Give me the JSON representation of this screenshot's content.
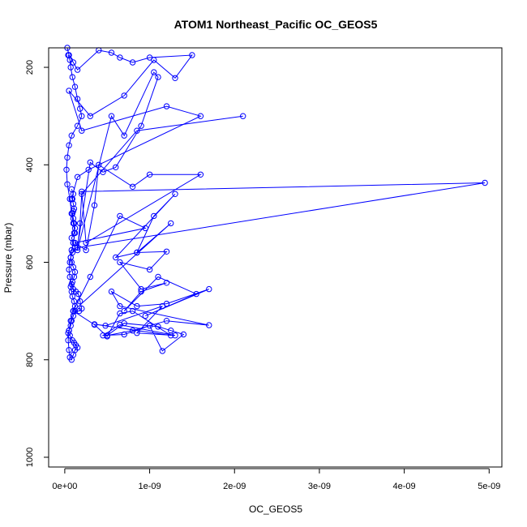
{
  "chart_data": {
    "type": "line",
    "title": "ATOM1 Northeast_Pacific OC_GEOS5",
    "xlabel": "OC_GEOS5",
    "ylabel": "Pressure (mbar)",
    "xlim": [
      -1.9e-10,
      5.15e-09
    ],
    "ylim": [
      1020,
      160
    ],
    "y_reversed": true,
    "x_ticks": [
      0,
      1e-09,
      2e-09,
      3e-09,
      4e-09,
      5e-09
    ],
    "x_tick_labels": [
      "0e+00",
      "1e-09",
      "2e-09",
      "3e-09",
      "4e-09",
      "5e-09"
    ],
    "y_ticks": [
      200,
      400,
      600,
      800,
      1000
    ],
    "y_tick_labels": [
      "200",
      "400",
      "600",
      "800",
      "1000"
    ],
    "grid": false,
    "marker": "open-circle",
    "series": [
      {
        "color": "#0000ff",
        "x": [
          4e-11,
          6e-11,
          7e-11,
          9e-11,
          1.2e-10,
          1.5e-10,
          1.8e-10,
          2e-10,
          1.5e-10,
          8e-11,
          5e-11,
          3e-11,
          2e-11,
          3e-11,
          6e-11,
          8e-11,
          1e-10,
          1.2e-10,
          1e-10,
          8e-11,
          7e-11,
          6e-11,
          5e-11,
          6e-11,
          8e-11,
          1e-10,
          1.3e-10,
          1.6e-10,
          1.8e-10,
          2e-10,
          1.7e-10,
          1.2e-10,
          1e-10,
          8e-11,
          7e-11,
          5e-11,
          4e-11,
          6e-11,
          9e-11,
          1.1e-10,
          1.3e-10,
          1.5e-10,
          1.2e-10,
          1e-10,
          8e-11,
          6e-11,
          5e-11,
          4e-11,
          5e-11,
          7e-11,
          1e-10,
          1.2e-10,
          1.1e-10,
          9e-11,
          8e-11,
          7e-11,
          9e-11,
          1.1e-10,
          1.2e-10,
          1e-10,
          8e-11,
          7e-11,
          9e-11,
          1.2e-10,
          1e-10,
          8e-11,
          1.1e-10,
          1.2e-10,
          1.1e-10,
          1e-10,
          9e-11,
          1e-10,
          1.1e-10,
          1e-10,
          9e-11,
          1e-10,
          8e-11
        ],
        "y": [
          175,
          185,
          200,
          220,
          240,
          265,
          285,
          300,
          320,
          340,
          360,
          385,
          410,
          440,
          470,
          500,
          520,
          540,
          560,
          575,
          590,
          600,
          615,
          630,
          645,
          655,
          660,
          665,
          680,
          695,
          700,
          700,
          710,
          720,
          730,
          740,
          745,
          750,
          760,
          765,
          770,
          775,
          780,
          790,
          800,
          795,
          780,
          760,
          740,
          720,
          700,
          690,
          680,
          670,
          660,
          650,
          640,
          630,
          620,
          610,
          600,
          590,
          580,
          570,
          560,
          550,
          540,
          530,
          520,
          510,
          500,
          495,
          490,
          480,
          470,
          460,
          450
        ]
      },
      {
        "color": "#0000ff",
        "x": [
          2.1e-09,
          8.5e-10,
          2e-10,
          1.8e-10,
          1.5e-10,
          5.5e-10,
          7e-10,
          1.05e-09,
          1.1e-09,
          9e-10,
          6e-10,
          4.5e-10,
          3e-10,
          1.5e-10,
          4.95e-09,
          2e-10,
          2.5e-10,
          1.6e-09,
          1e-09,
          8e-10,
          4e-10,
          3.5e-10,
          2.5e-10,
          1.2e-10,
          9.5e-10,
          6.5e-10,
          3e-10,
          1e-10,
          1.25e-09,
          8.5e-10,
          6e-10,
          1.3e-09,
          1.05e-09,
          8.5e-10,
          1.2e-09,
          1e-09,
          6.5e-10,
          9e-10,
          1.2e-09,
          9e-10,
          7e-10,
          1.1e-09,
          1.55e-09,
          9.5e-10,
          1.7e-09,
          1.2e-09,
          8.5e-10,
          5.5e-10,
          6.5e-10,
          1.7e-09,
          1.2e-09,
          8e-10,
          5e-10,
          7e-10,
          1.1e-09,
          1.25e-09,
          1.4e-09,
          1.15e-09,
          1e-09,
          7e-10,
          4.5e-10,
          6.5e-10,
          1.3e-09,
          8.5e-10,
          1.15e-09,
          4.8e-10,
          3.5e-10,
          1.25e-09,
          8e-10,
          6.5e-10,
          5e-10,
          3.5e-10,
          1e-10
        ],
        "y": [
          300,
          330,
          460,
          520,
          575,
          300,
          340,
          210,
          220,
          320,
          405,
          415,
          395,
          570,
          437,
          455,
          560,
          420,
          420,
          445,
          400,
          483,
          575,
          560,
          530,
          505,
          630,
          700,
          520,
          580,
          590,
          460,
          505,
          580,
          578,
          615,
          600,
          655,
          642,
          660,
          700,
          630,
          665,
          710,
          655,
          685,
          690,
          660,
          690,
          729,
          720,
          740,
          750,
          725,
          732,
          740,
          748,
          782,
          730,
          748,
          750,
          728,
          750,
          745,
          690,
          730,
          727,
          750,
          700,
          705,
          752,
          728,
          700
        ]
      },
      {
        "color": "#0000ff",
        "x": [
          3e-11,
          5e-11,
          1e-10,
          1.5e-10,
          4e-10,
          5.5e-10,
          6.5e-10,
          8e-10,
          1e-09,
          1.5e-09,
          1.3e-09,
          1.05e-09,
          7e-10,
          3e-10,
          5e-11,
          2e-10,
          1.2e-09,
          1.6e-09,
          2.8e-10,
          1.5e-10,
          8e-11
        ],
        "y": [
          160,
          175,
          190,
          205,
          165,
          170,
          180,
          190,
          180,
          175,
          222,
          185,
          258,
          300,
          248,
          330,
          280,
          300,
          410,
          425,
          470
        ]
      }
    ]
  }
}
